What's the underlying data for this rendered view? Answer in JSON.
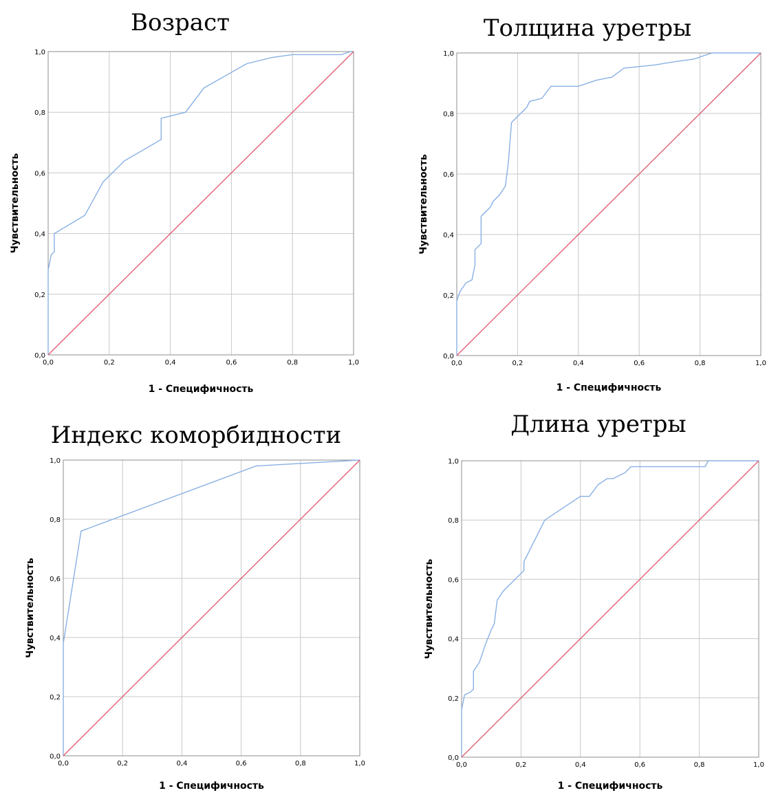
{
  "colors": {
    "roc": "#88b0e4",
    "reference": "#e0607a",
    "grid": "#c8c8c8",
    "frame": "#8c8c8c"
  },
  "chart_data": [
    {
      "type": "line",
      "title": "Возраст",
      "xlabel": "1 - Специфичность",
      "ylabel": "Чувствительность",
      "xlim": [
        0,
        1
      ],
      "ylim": [
        0,
        1
      ],
      "ticks": [
        "0,0",
        "0,2",
        "0,4",
        "0,6",
        "0,8",
        "1,0"
      ],
      "grid": true,
      "series": [
        {
          "role": "roc",
          "points": [
            [
              0,
              0
            ],
            [
              0,
              0.28
            ],
            [
              0.01,
              0.33
            ],
            [
              0.02,
              0.34
            ],
            [
              0.02,
              0.4
            ],
            [
              0.12,
              0.46
            ],
            [
              0.18,
              0.57
            ],
            [
              0.25,
              0.64
            ],
            [
              0.37,
              0.71
            ],
            [
              0.37,
              0.78
            ],
            [
              0.45,
              0.8
            ],
            [
              0.51,
              0.88
            ],
            [
              0.65,
              0.96
            ],
            [
              0.73,
              0.98
            ],
            [
              0.8,
              0.99
            ],
            [
              0.96,
              0.99
            ],
            [
              0.99,
              1.0
            ],
            [
              1.0,
              1.0
            ]
          ]
        },
        {
          "role": "reference",
          "points": [
            [
              0,
              0
            ],
            [
              1,
              1
            ]
          ]
        }
      ]
    },
    {
      "type": "line",
      "title": "Толщина уретры",
      "xlabel": "1 - Специфичность",
      "ylabel": "Чувствительность",
      "xlim": [
        0,
        1
      ],
      "ylim": [
        0,
        1
      ],
      "ticks": [
        "0,0",
        "0,2",
        "0,4",
        "0,6",
        "0,8",
        "1,0"
      ],
      "grid": true,
      "series": [
        {
          "role": "roc",
          "points": [
            [
              0,
              0
            ],
            [
              0,
              0.18
            ],
            [
              0.01,
              0.21
            ],
            [
              0.03,
              0.24
            ],
            [
              0.05,
              0.25
            ],
            [
              0.06,
              0.3
            ],
            [
              0.06,
              0.35
            ],
            [
              0.08,
              0.37
            ],
            [
              0.08,
              0.46
            ],
            [
              0.11,
              0.49
            ],
            [
              0.12,
              0.51
            ],
            [
              0.14,
              0.53
            ],
            [
              0.16,
              0.56
            ],
            [
              0.17,
              0.64
            ],
            [
              0.18,
              0.77
            ],
            [
              0.23,
              0.82
            ],
            [
              0.24,
              0.84
            ],
            [
              0.28,
              0.85
            ],
            [
              0.31,
              0.89
            ],
            [
              0.4,
              0.89
            ],
            [
              0.46,
              0.91
            ],
            [
              0.51,
              0.92
            ],
            [
              0.55,
              0.95
            ],
            [
              0.65,
              0.96
            ],
            [
              0.71,
              0.97
            ],
            [
              0.78,
              0.98
            ],
            [
              0.84,
              1.0
            ],
            [
              1.0,
              1.0
            ]
          ]
        },
        {
          "role": "reference",
          "points": [
            [
              0,
              0
            ],
            [
              1,
              1
            ]
          ]
        }
      ]
    },
    {
      "type": "line",
      "title": "Индекс коморбидности",
      "xlabel": "1 - Специфичность",
      "ylabel": "Чувствительность",
      "xlim": [
        0,
        1
      ],
      "ylim": [
        0,
        1
      ],
      "ticks": [
        "0,0",
        "0,2",
        "0,4",
        "0,6",
        "0,8",
        "1,0"
      ],
      "grid": true,
      "series": [
        {
          "role": "roc",
          "points": [
            [
              0,
              0
            ],
            [
              0,
              0.38
            ],
            [
              0.06,
              0.76
            ],
            [
              0.65,
              0.98
            ],
            [
              1.0,
              1.0
            ]
          ]
        },
        {
          "role": "reference",
          "points": [
            [
              0,
              0
            ],
            [
              1,
              1
            ]
          ]
        }
      ]
    },
    {
      "type": "line",
      "title": "Длина уретры",
      "xlabel": "1 - Специфичность",
      "ylabel": "Чувствительность",
      "xlim": [
        0,
        1
      ],
      "ylim": [
        0,
        1
      ],
      "ticks": [
        "0,0",
        "0,2",
        "0,4",
        "0,6",
        "0,8",
        "1,0"
      ],
      "grid": true,
      "series": [
        {
          "role": "roc",
          "points": [
            [
              0,
              0
            ],
            [
              0,
              0.16
            ],
            [
              0.01,
              0.21
            ],
            [
              0.03,
              0.22
            ],
            [
              0.04,
              0.23
            ],
            [
              0.04,
              0.29
            ],
            [
              0.06,
              0.32
            ],
            [
              0.08,
              0.38
            ],
            [
              0.1,
              0.43
            ],
            [
              0.11,
              0.45
            ],
            [
              0.12,
              0.53
            ],
            [
              0.14,
              0.56
            ],
            [
              0.16,
              0.58
            ],
            [
              0.18,
              0.6
            ],
            [
              0.21,
              0.63
            ],
            [
              0.21,
              0.66
            ],
            [
              0.28,
              0.8
            ],
            [
              0.4,
              0.88
            ],
            [
              0.43,
              0.88
            ],
            [
              0.46,
              0.92
            ],
            [
              0.49,
              0.94
            ],
            [
              0.51,
              0.94
            ],
            [
              0.55,
              0.96
            ],
            [
              0.57,
              0.98
            ],
            [
              0.82,
              0.98
            ],
            [
              0.83,
              1.0
            ],
            [
              1.0,
              1.0
            ]
          ]
        },
        {
          "role": "reference",
          "points": [
            [
              0,
              0
            ],
            [
              1,
              1
            ]
          ]
        }
      ]
    }
  ]
}
